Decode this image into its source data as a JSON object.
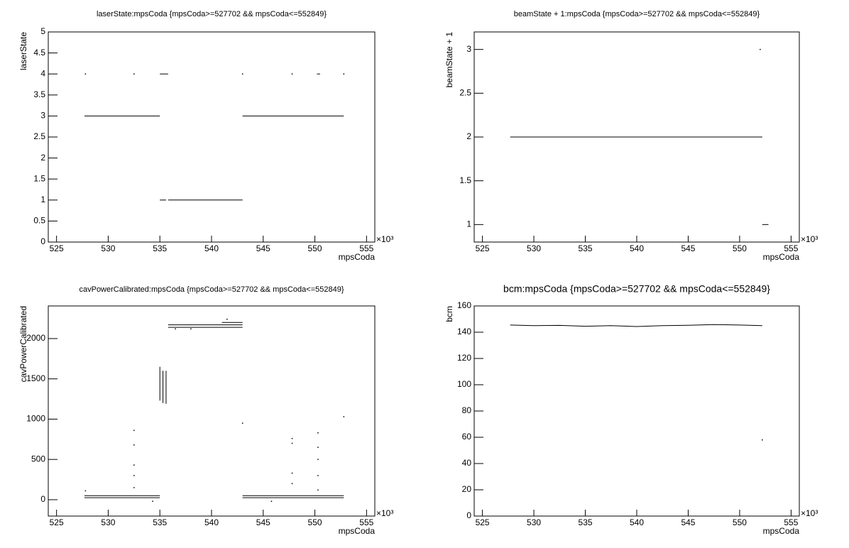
{
  "chart_data": [
    {
      "type": "line",
      "title": "laserState:mpsCoda {mpsCoda>=527702 && mpsCoda<=552849}",
      "xlabel": "mpsCoda",
      "ylabel": "laserState",
      "x_multiplier": "×10³",
      "xlim": [
        524.2,
        555.8
      ],
      "ylim": [
        0,
        5
      ],
      "xticks": [
        525,
        530,
        535,
        540,
        545,
        550,
        555
      ],
      "yticks": [
        0,
        0.5,
        1,
        1.5,
        2,
        2.5,
        3,
        3.5,
        4,
        4.5,
        5
      ],
      "series": [
        {
          "color": "#000000",
          "x": [
            527.7,
            535.0,
            null,
            535.8,
            543.0,
            null,
            543.0,
            552.8,
            null,
            535.0,
            535.8,
            null,
            535.0,
            535.6,
            null,
            527.8,
            null,
            532.5,
            null,
            543.0,
            null,
            547.8,
            null,
            550.2,
            550.5,
            null,
            552.8
          ],
          "values": [
            3,
            3,
            null,
            1,
            1,
            null,
            3,
            3,
            null,
            4,
            4,
            null,
            1,
            1,
            null,
            4,
            null,
            4,
            null,
            4,
            null,
            4,
            null,
            4,
            4,
            null,
            4
          ]
        }
      ]
    },
    {
      "type": "line",
      "title": "beamState + 1:mpsCoda {mpsCoda>=527702 && mpsCoda<=552849}",
      "xlabel": "mpsCoda",
      "ylabel": "beamState + 1",
      "x_multiplier": "×10³",
      "xlim": [
        524.2,
        555.8
      ],
      "ylim": [
        0.8,
        3.2
      ],
      "xticks": [
        525,
        530,
        535,
        540,
        545,
        550,
        555
      ],
      "yticks": [
        1,
        1.5,
        2,
        2.5,
        3
      ],
      "series": [
        {
          "color": "#000000",
          "x": [
            527.7,
            552.2,
            null,
            552.2,
            552.8,
            null,
            552.0
          ],
          "values": [
            2,
            2,
            null,
            1,
            1,
            null,
            3
          ]
        }
      ]
    },
    {
      "type": "line",
      "title": "cavPowerCalibrated:mpsCoda {mpsCoda>=527702 && mpsCoda<=552849}",
      "xlabel": "mpsCoda",
      "ylabel": "cavPowerCalibrated",
      "x_multiplier": "×10³",
      "xlim": [
        524.2,
        555.8
      ],
      "ylim": [
        -203,
        2405
      ],
      "xticks": [
        525,
        530,
        535,
        540,
        545,
        550,
        555
      ],
      "yticks": [
        0,
        500,
        1000,
        1500,
        2000
      ],
      "series": [
        {
          "color": "#000000",
          "x": [
            527.7,
            535.0,
            null,
            527.7,
            535.0,
            null,
            543.0,
            552.8,
            null,
            543.0,
            552.8,
            null,
            535.8,
            543.0,
            null,
            535.8,
            543.0,
            null,
            541.0,
            543.0,
            null,
            535.0,
            535.0,
            null,
            535.3,
            535.3,
            null,
            535.6,
            535.6,
            null,
            527.8,
            null,
            532.5,
            null,
            532.5,
            null,
            532.5,
            null,
            532.5,
            null,
            532.5,
            null,
            536.5,
            null,
            538.0,
            null,
            534.3,
            null,
            545.8,
            null,
            543.0,
            null,
            552.8,
            null,
            547.8,
            null,
            547.8,
            null,
            547.8,
            null,
            547.8,
            null,
            550.3,
            null,
            550.3,
            null,
            550.3,
            null,
            550.3,
            null,
            550.3,
            null,
            541.5
          ],
          "values": [
            25,
            25,
            null,
            50,
            50,
            null,
            25,
            25,
            null,
            50,
            50,
            null,
            2140,
            2140,
            null,
            2170,
            2170,
            null,
            2200,
            2200,
            null,
            1230,
            1650,
            null,
            1200,
            1600,
            null,
            1190,
            1600,
            null,
            110,
            null,
            860,
            null,
            680,
            null,
            430,
            null,
            300,
            null,
            150,
            null,
            2120,
            null,
            2120,
            null,
            -20,
            null,
            -20,
            null,
            950,
            null,
            1030,
            null,
            760,
            null,
            700,
            null,
            330,
            null,
            200,
            null,
            830,
            null,
            650,
            null,
            500,
            null,
            300,
            null,
            120,
            null,
            2240
          ]
        }
      ]
    },
    {
      "type": "line",
      "title": "bcm:mpsCoda {mpsCoda>=527702 && mpsCoda<=552849}",
      "xlabel": "mpsCoda",
      "ylabel": "bcm",
      "x_multiplier": "×10³",
      "xlim": [
        524.2,
        555.8
      ],
      "ylim": [
        0,
        160
      ],
      "xticks": [
        525,
        530,
        535,
        540,
        545,
        550,
        555
      ],
      "yticks": [
        0,
        20,
        40,
        60,
        80,
        100,
        120,
        140,
        160
      ],
      "series": [
        {
          "color": "#000000",
          "x": [
            527.7,
            530.0,
            532.5,
            535.0,
            537.5,
            540.0,
            542.5,
            545.0,
            547.5,
            550.0,
            552.2,
            null,
            552.2
          ],
          "values": [
            145.5,
            145,
            145.2,
            144.5,
            145,
            144.3,
            145,
            145.3,
            145.8,
            145.5,
            145,
            null,
            58
          ]
        }
      ]
    }
  ]
}
